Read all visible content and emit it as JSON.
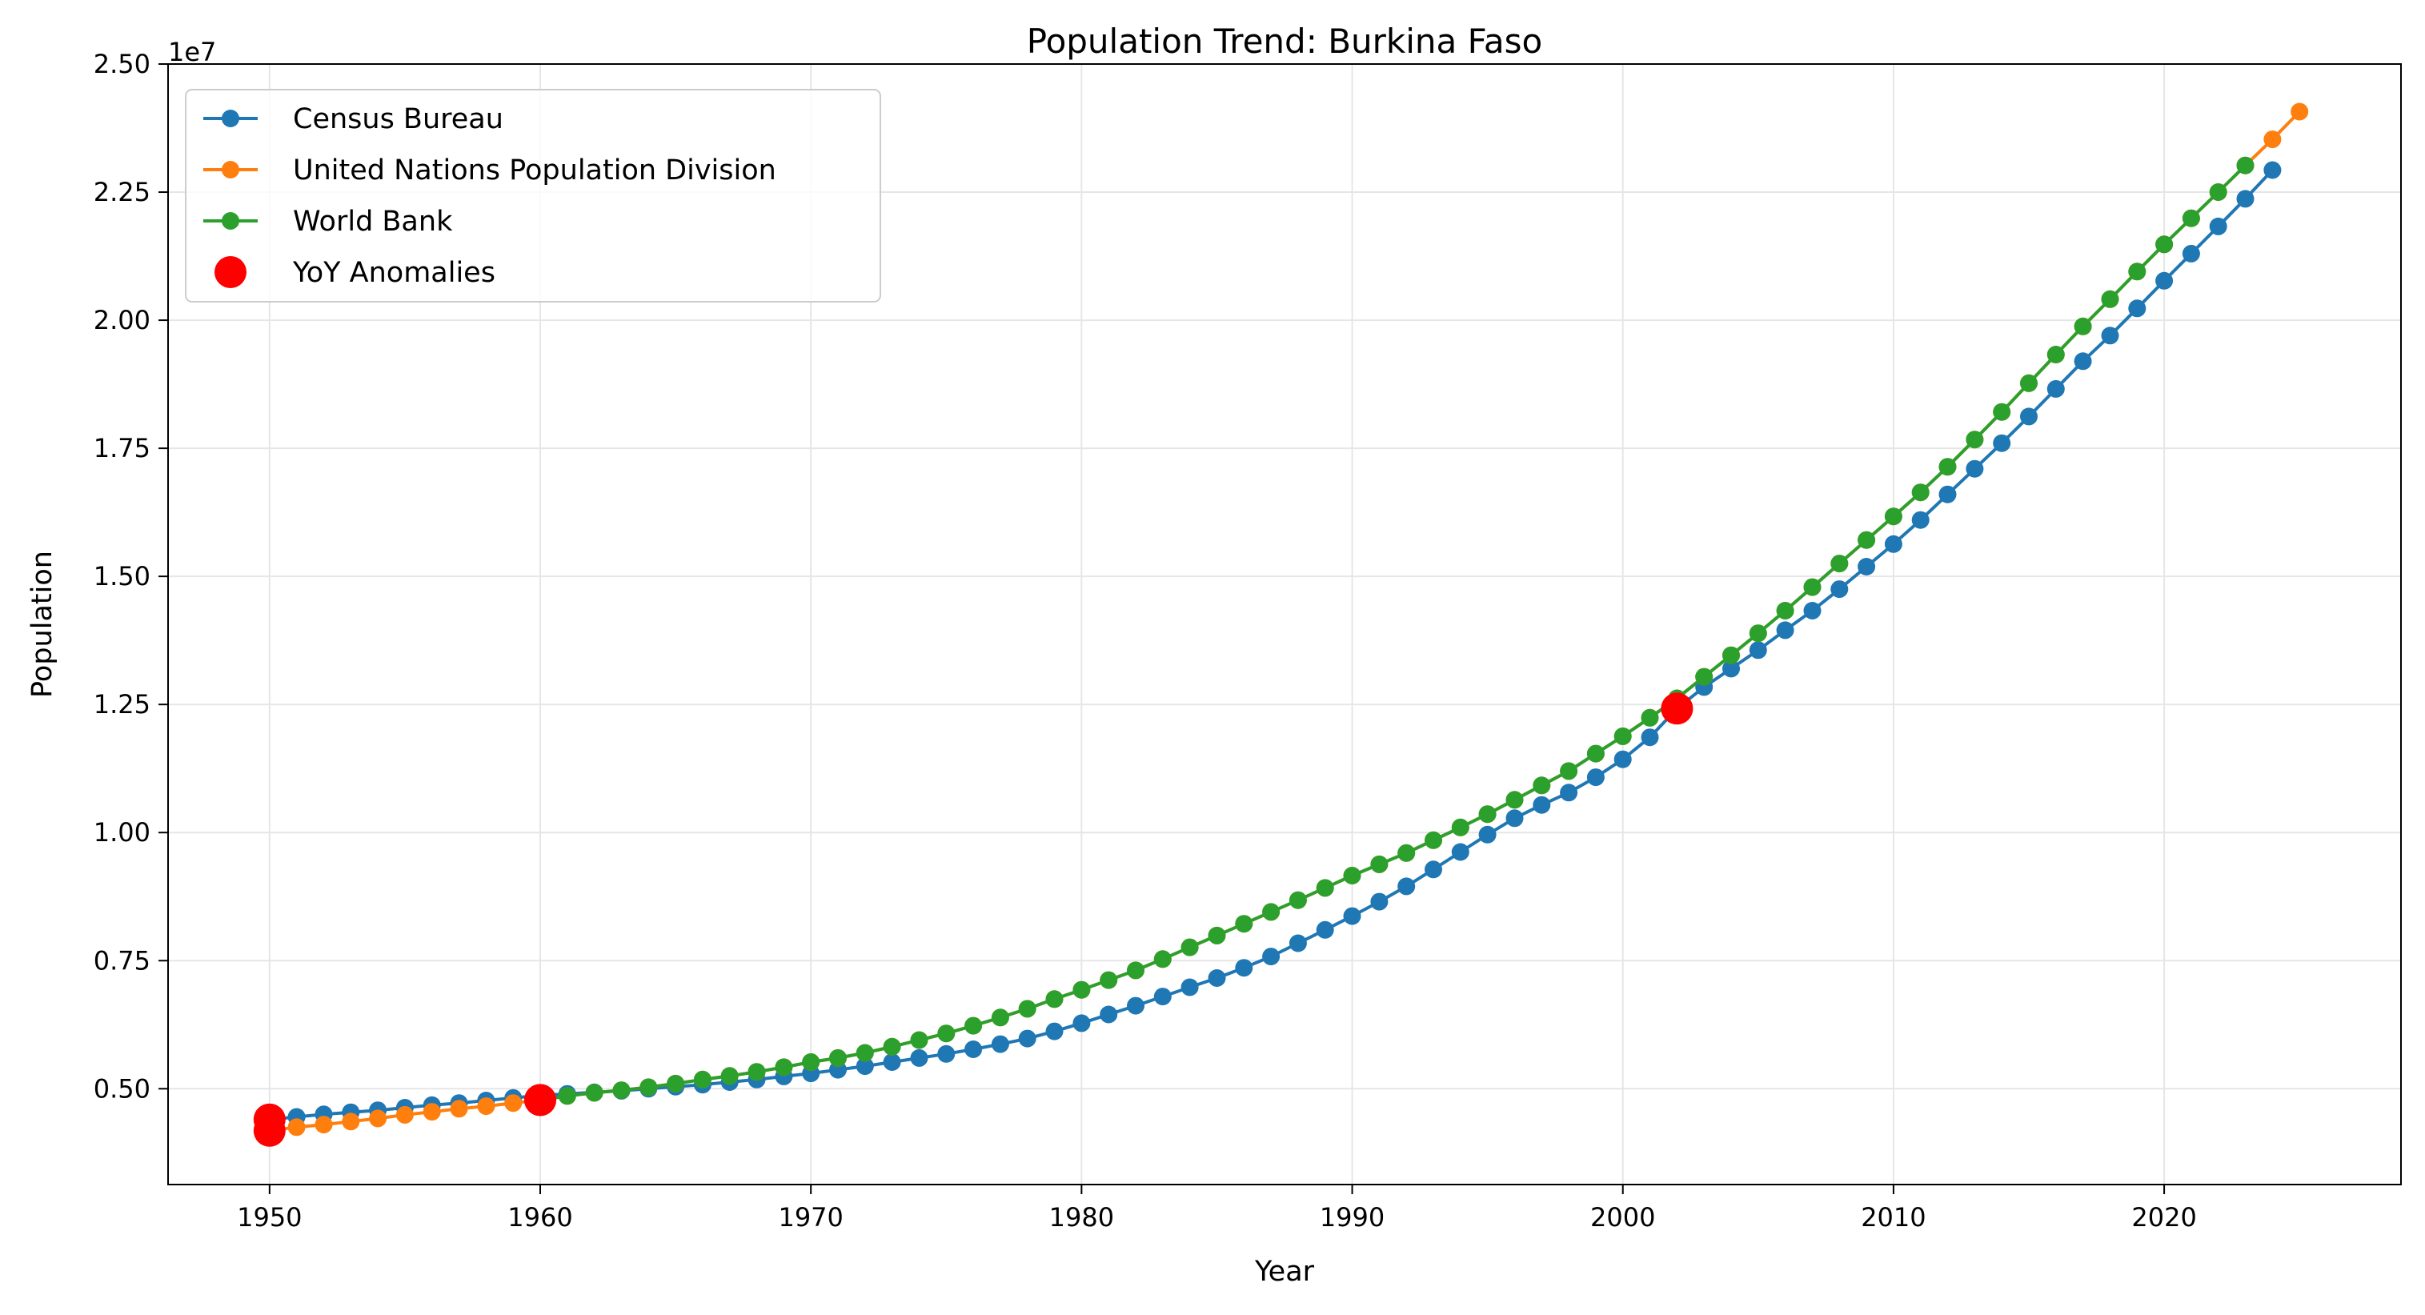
{
  "chart_data": {
    "type": "line",
    "title": "Population Trend: Burkina Faso",
    "xlabel": "Year",
    "ylabel": "Population",
    "y_offset_label": "1e7",
    "xlim": [
      1946.25,
      2028.75
    ],
    "ylim": [
      3130000,
      25000000
    ],
    "x_ticks": [
      1950,
      1960,
      1970,
      1980,
      1990,
      2000,
      2010,
      2020
    ],
    "x_tick_labels": [
      "1950",
      "1960",
      "1970",
      "1980",
      "1990",
      "2000",
      "2010",
      "2020"
    ],
    "y_ticks": [
      5000000,
      7500000,
      10000000,
      12500000,
      15000000,
      17500000,
      20000000,
      22500000,
      25000000
    ],
    "y_tick_labels": [
      "0.50",
      "0.75",
      "1.00",
      "1.25",
      "1.50",
      "1.75",
      "2.00",
      "2.25",
      "2.50"
    ],
    "grid": true,
    "legend_position": "upper-left",
    "series": [
      {
        "name": "Census Bureau",
        "color": "#1f77b4",
        "start_year": 1950,
        "values": [
          4400000,
          4450000,
          4500000,
          4540000,
          4580000,
          4630000,
          4680000,
          4720000,
          4770000,
          4820000,
          4870000,
          4900000,
          4930000,
          4960000,
          5000000,
          5040000,
          5080000,
          5130000,
          5180000,
          5240000,
          5300000,
          5370000,
          5440000,
          5520000,
          5600000,
          5680000,
          5770000,
          5870000,
          5980000,
          6120000,
          6280000,
          6450000,
          6620000,
          6800000,
          6980000,
          7160000,
          7360000,
          7580000,
          7840000,
          8100000,
          8370000,
          8650000,
          8950000,
          9280000,
          9620000,
          9960000,
          10280000,
          10540000,
          10780000,
          11080000,
          11430000,
          11860000,
          12420000,
          12840000,
          13200000,
          13560000,
          13950000,
          14330000,
          14750000,
          15190000,
          15630000,
          16100000,
          16600000,
          17100000,
          17600000,
          18120000,
          18660000,
          19200000,
          19700000,
          20230000,
          20770000,
          21300000,
          21830000,
          22370000,
          22930000
        ]
      },
      {
        "name": "United Nations Population Division",
        "color": "#ff7f0e",
        "start_year": 1950,
        "values": [
          4180000,
          4250000,
          4300000,
          4360000,
          4420000,
          4490000,
          4550000,
          4610000,
          4660000,
          4720000,
          4780000,
          4860000,
          4920000,
          4970000,
          5030000,
          5100000,
          5180000,
          5250000,
          5330000,
          5420000,
          5520000,
          5600000,
          5700000,
          5820000,
          5950000,
          6080000,
          6230000,
          6390000,
          6560000,
          6750000,
          6930000,
          7120000,
          7310000,
          7530000,
          7760000,
          7990000,
          8220000,
          8450000,
          8680000,
          8920000,
          9160000,
          9380000,
          9600000,
          9850000,
          10100000,
          10360000,
          10640000,
          10920000,
          11200000,
          11540000,
          11880000,
          12240000,
          12620000,
          13040000,
          13460000,
          13890000,
          14330000,
          14790000,
          15250000,
          15710000,
          16170000,
          16640000,
          17140000,
          17670000,
          18210000,
          18770000,
          19330000,
          19880000,
          20410000,
          20950000,
          21480000,
          21990000,
          22500000,
          23020000,
          23530000,
          24070000
        ]
      },
      {
        "name": "World Bank",
        "color": "#2ca02c",
        "start_year": 1960,
        "values": [
          4780000,
          4860000,
          4920000,
          4970000,
          5030000,
          5100000,
          5180000,
          5250000,
          5330000,
          5420000,
          5520000,
          5600000,
          5700000,
          5820000,
          5950000,
          6080000,
          6230000,
          6390000,
          6560000,
          6750000,
          6930000,
          7120000,
          7310000,
          7530000,
          7760000,
          7990000,
          8220000,
          8450000,
          8680000,
          8920000,
          9160000,
          9380000,
          9600000,
          9850000,
          10100000,
          10360000,
          10640000,
          10920000,
          11200000,
          11540000,
          11880000,
          12240000,
          12620000,
          13040000,
          13460000,
          13890000,
          14330000,
          14790000,
          15250000,
          15710000,
          16170000,
          16640000,
          17140000,
          17670000,
          18210000,
          18770000,
          19330000,
          19880000,
          20410000,
          20950000,
          21480000,
          21990000,
          22500000,
          23020000
        ]
      }
    ],
    "anomalies": {
      "name": "YoY Anomalies",
      "color": "#ff0000",
      "points": [
        {
          "x": 1950,
          "y": 4400000
        },
        {
          "x": 1950,
          "y": 4180000
        },
        {
          "x": 1960,
          "y": 4780000
        },
        {
          "x": 1960,
          "y": 4780000
        },
        {
          "x": 2002,
          "y": 12420000
        }
      ]
    }
  }
}
